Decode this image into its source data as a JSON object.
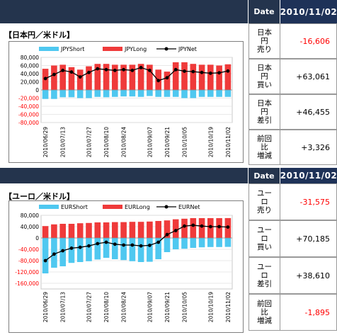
{
  "colors": {
    "header_bg": "#24344d",
    "short": "#4fc8f0",
    "long": "#ef3a3a",
    "net": "#000000",
    "negative_text": "#ff0000"
  },
  "jpy": {
    "section_title": "【日本円／米ドル】",
    "header": {
      "date_label": "Date",
      "date_value": "2010/11/02"
    },
    "rows": [
      {
        "label": "日本\n円\n売り",
        "value": "-16,606",
        "negative": true
      },
      {
        "label": "日本\n円\n買い",
        "value": "+63,061",
        "negative": false
      },
      {
        "label": "日本\n円\n差引",
        "value": "+46,455",
        "negative": false
      },
      {
        "label": "前回\n比\n増減",
        "value": "+3,326",
        "negative": false
      }
    ]
  },
  "eur": {
    "section_title": "【ユーロ／米ドル】",
    "header": {
      "date_label": "Date",
      "date_value": "2010/11/02"
    },
    "rows": [
      {
        "label": "ユー\nロ\n売り",
        "value": "-31,575",
        "negative": true
      },
      {
        "label": "ユー\nロ\n買い",
        "value": "+70,185",
        "negative": false
      },
      {
        "label": "ユー\nロ\n差引",
        "value": "+38,610",
        "negative": false
      },
      {
        "label": "前回\n比\n増減",
        "value": "-1,895",
        "negative": true
      }
    ]
  },
  "chart_data": [
    {
      "type": "bar",
      "legend": [
        "JPYShort",
        "JPYLong",
        "JPYNet"
      ],
      "ylim": [
        -80000,
        80000
      ],
      "yticks": [
        "80,000",
        "60,000",
        "40,000",
        "20,000",
        "0",
        "-20,000",
        "-40,000",
        "-60,000",
        "-80,000"
      ],
      "x_tick_labels": [
        "2010/06/29",
        "2010/07/13",
        "2010/07/27",
        "2010/08/10",
        "2010/08/24",
        "2010/09/07",
        "2010/09/21",
        "2010/10/05",
        "2010/10/19",
        "2010/11/02"
      ],
      "series": [
        {
          "name": "JPYShort",
          "values": [
            -22000,
            -22000,
            -18000,
            -18000,
            -20000,
            -20000,
            -17000,
            -18000,
            -17000,
            -16000,
            -16000,
            -17000,
            -15000,
            -17000,
            -17000,
            -17000,
            -20000,
            -20000,
            -17000,
            -17000,
            -17000,
            -17000
          ]
        },
        {
          "name": "JPYLong",
          "values": [
            52000,
            60000,
            62000,
            56000,
            50000,
            58000,
            64000,
            64000,
            62000,
            62000,
            62000,
            64000,
            62000,
            50000,
            45000,
            68000,
            68000,
            64000,
            62000,
            62000,
            60000,
            63000
          ]
        },
        {
          "name": "JPYNet",
          "values": [
            28000,
            38000,
            48000,
            44000,
            32000,
            43000,
            52000,
            50000,
            48000,
            50000,
            48000,
            55000,
            48000,
            23000,
            30000,
            50000,
            46000,
            45000,
            43000,
            41000,
            42000,
            46455
          ]
        }
      ]
    },
    {
      "type": "bar",
      "legend": [
        "EURShort",
        "EURLong",
        "EURNet"
      ],
      "ylim": [
        -180000,
        80000
      ],
      "yticks": [
        "80,000",
        "40,000",
        "0",
        "-40,000",
        "-80,000",
        "-120,000",
        "-160,000"
      ],
      "x_tick_labels": [
        "2010/06/29",
        "2010/07/13",
        "2010/07/27",
        "2010/08/10",
        "2010/08/24",
        "2010/09/07",
        "2010/09/21",
        "2010/10/05",
        "2010/10/19",
        "2010/11/02"
      ],
      "series": [
        {
          "name": "EURShort",
          "values": [
            -125000,
            -105000,
            -100000,
            -88000,
            -85000,
            -82000,
            -76000,
            -70000,
            -75000,
            -78000,
            -82000,
            -85000,
            -84000,
            -75000,
            -50000,
            -40000,
            -38000,
            -35000,
            -33000,
            -32000,
            -32000,
            -31575
          ]
        },
        {
          "name": "EURLong",
          "values": [
            42000,
            48000,
            50000,
            50000,
            52000,
            53000,
            55000,
            55000,
            56000,
            56000,
            57000,
            57000,
            58000,
            60000,
            62000,
            66000,
            68000,
            70000,
            70000,
            70000,
            70000,
            70185
          ]
        },
        {
          "name": "EURNet",
          "values": [
            -80000,
            -57000,
            -45000,
            -36000,
            -33000,
            -28000,
            -20000,
            -15000,
            -22000,
            -25000,
            -25000,
            -28000,
            -26000,
            -15000,
            12000,
            26000,
            42000,
            45000,
            42000,
            40000,
            40000,
            38610
          ]
        }
      ]
    }
  ]
}
